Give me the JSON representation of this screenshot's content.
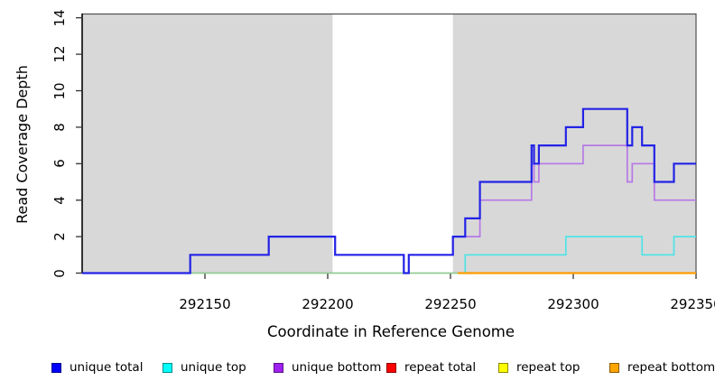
{
  "y_axis": {
    "label": "Read Coverage Depth",
    "range": [
      0,
      14
    ],
    "ticks": [
      0,
      2,
      4,
      6,
      8,
      10,
      12,
      14
    ],
    "tick_labels": [
      "0",
      "2",
      "4",
      "6",
      "8",
      "10",
      "12",
      "14"
    ]
  },
  "x_axis": {
    "label": "Coordinate in Reference Genome",
    "range": [
      292100,
      292350
    ],
    "ticks": [
      292150,
      292200,
      292250,
      292300,
      292350
    ],
    "tick_labels": [
      "292150",
      "292200",
      "292250",
      "292300",
      "292350"
    ]
  },
  "chart_data": {
    "type": "line",
    "style": "step",
    "grid": false,
    "plot_background": "#ffffff",
    "shaded_region_color": "#d8d8d8",
    "shaded_regions": [
      {
        "name": "left shaded block",
        "from": 292100,
        "to": 292202
      },
      {
        "name": "right shaded block",
        "from": 292251,
        "to": 292350
      }
    ],
    "unshaded_gap": {
      "from": 292202,
      "to": 292251
    },
    "series": [
      {
        "name": "zero baseline",
        "color": "#8ecf8e",
        "width": 1.6,
        "end": 292253,
        "points": [
          [
            292144,
            0
          ]
        ]
      },
      {
        "name": "unique top",
        "color": "#4fe3e6",
        "width": 1.7,
        "end": 292350,
        "points": [
          [
            292256,
            0
          ],
          [
            292256,
            1
          ],
          [
            292297,
            2
          ],
          [
            292328,
            1
          ],
          [
            292341,
            2
          ]
        ]
      },
      {
        "name": "repeat bottom",
        "color": "#ff9d00",
        "width": 2.2,
        "end": 292350,
        "points": [
          [
            292253,
            0
          ]
        ]
      },
      {
        "name": "unique bottom",
        "color": "#b678e6",
        "width": 1.7,
        "end": 292350,
        "points": [
          [
            292100,
            0
          ],
          [
            292144,
            1
          ],
          [
            292176,
            2
          ],
          [
            292203,
            1
          ],
          [
            292231,
            0
          ],
          [
            292233,
            1
          ],
          [
            292251,
            2
          ],
          [
            292262,
            4
          ],
          [
            292283,
            6
          ],
          [
            292284,
            5
          ],
          [
            292286,
            6
          ],
          [
            292304,
            7
          ],
          [
            292322,
            5
          ],
          [
            292324,
            6
          ],
          [
            292333,
            4
          ]
        ]
      },
      {
        "name": "unique total",
        "color": "#2323e6",
        "width": 2.2,
        "end": 292350,
        "points": [
          [
            292100,
            0
          ],
          [
            292144,
            1
          ],
          [
            292176,
            2
          ],
          [
            292203,
            1
          ],
          [
            292231,
            0
          ],
          [
            292233,
            1
          ],
          [
            292251,
            2
          ],
          [
            292256,
            3
          ],
          [
            292262,
            5
          ],
          [
            292283,
            7
          ],
          [
            292284,
            6
          ],
          [
            292286,
            7
          ],
          [
            292297,
            8
          ],
          [
            292304,
            9
          ],
          [
            292322,
            7
          ],
          [
            292324,
            8
          ],
          [
            292328,
            7
          ],
          [
            292333,
            5
          ],
          [
            292341,
            6
          ]
        ]
      }
    ]
  },
  "legend": {
    "items": [
      {
        "label": "unique total",
        "color": "#0000ff"
      },
      {
        "label": "unique top",
        "color": "#00ffff"
      },
      {
        "label": "unique bottom",
        "color": "#a020f0"
      },
      {
        "label": "repeat total",
        "color": "#ff0000"
      },
      {
        "label": "repeat top",
        "color": "#ffff00"
      },
      {
        "label": "repeat bottom",
        "color": "#ffa500"
      }
    ]
  }
}
